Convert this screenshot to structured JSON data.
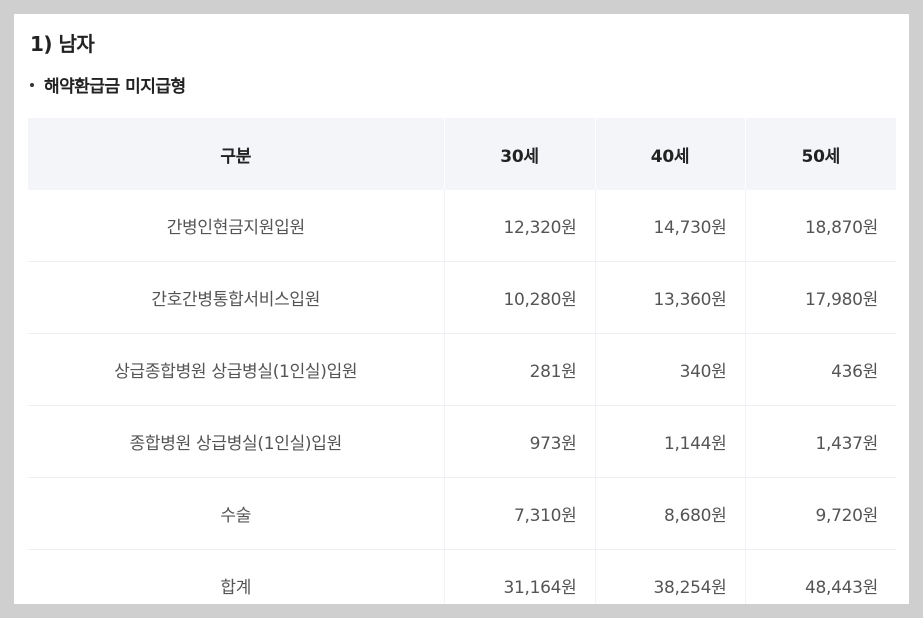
{
  "section": {
    "title": "1) 남자",
    "subtitle": "해약환급금 미지급형"
  },
  "table": {
    "headers": [
      "구분",
      "30세",
      "40세",
      "50세"
    ],
    "rows": [
      {
        "label": "간병인현금지원입원",
        "v30": "12,320원",
        "v40": "14,730원",
        "v50": "18,870원"
      },
      {
        "label": "간호간병통합서비스입원",
        "v30": "10,280원",
        "v40": "13,360원",
        "v50": "17,980원"
      },
      {
        "label": "상급종합병원 상급병실(1인실)입원",
        "v30": "281원",
        "v40": "340원",
        "v50": "436원"
      },
      {
        "label": "종합병원 상급병실(1인실)입원",
        "v30": "973원",
        "v40": "1,144원",
        "v50": "1,437원"
      },
      {
        "label": "수술",
        "v30": "7,310원",
        "v40": "8,680원",
        "v50": "9,720원"
      },
      {
        "label": "합계",
        "v30": "31,164원",
        "v40": "38,254원",
        "v50": "48,443원"
      }
    ]
  }
}
